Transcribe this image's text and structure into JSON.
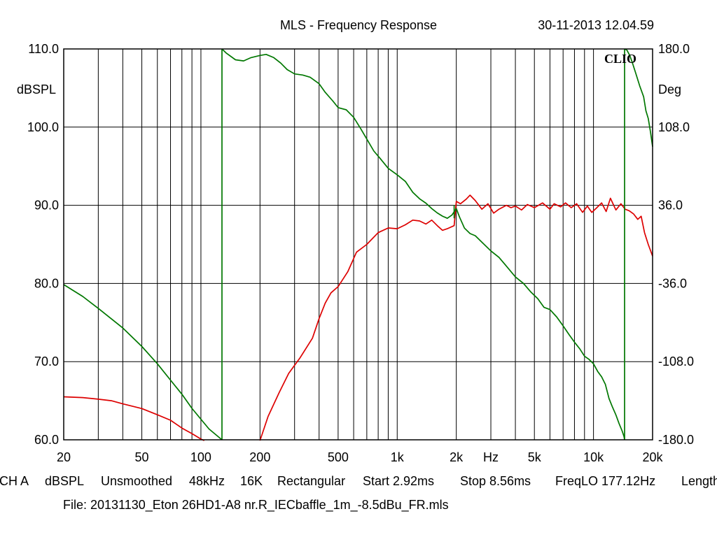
{
  "header": {
    "title": "MLS - Frequency Response",
    "timestamp": "30-11-2013 12.04.59",
    "brand": "CLIO"
  },
  "status_bar": [
    "CH A",
    "dBSPL",
    "Unsmoothed",
    "48kHz",
    "16K",
    "Rectangular",
    "Start 2.92ms",
    "Stop 8.56ms",
    "FreqLO 177.12Hz",
    "Length"
  ],
  "file_label": "File: 20131130_Eton 26HD1-A8 nr.R_IECbaffle_1m_-8.5dBu_FR.mls",
  "colors": {
    "magnitude": "#dd0000",
    "phase": "#007700",
    "grid": "#000000",
    "background": "#ffffff"
  },
  "chart_data": {
    "type": "line",
    "title": "MLS - Frequency Response",
    "x_scale": "log",
    "xlim": [
      20,
      20000
    ],
    "xlabel": "Hz",
    "x_ticks": [
      {
        "value": 20,
        "label": "20"
      },
      {
        "value": 50,
        "label": "50"
      },
      {
        "value": 100,
        "label": "100"
      },
      {
        "value": 200,
        "label": "200"
      },
      {
        "value": 500,
        "label": "500"
      },
      {
        "value": 1000,
        "label": "1k"
      },
      {
        "value": 2000,
        "label": "2k"
      },
      {
        "value": 5000,
        "label": "5k"
      },
      {
        "value": 10000,
        "label": "10k"
      },
      {
        "value": 20000,
        "label": "20k"
      }
    ],
    "x_unit_at": 3000,
    "y_left": {
      "label": "dBSPL",
      "lim": [
        60,
        110
      ],
      "ticks": [
        {
          "value": 110,
          "label": "110.0"
        },
        {
          "value": 100,
          "label": "100.0"
        },
        {
          "value": 90,
          "label": "90.0"
        },
        {
          "value": 80,
          "label": "80.0"
        },
        {
          "value": 70,
          "label": "70.0"
        },
        {
          "value": 60,
          "label": "60.0"
        }
      ]
    },
    "y_right": {
      "label": "Deg",
      "lim": [
        -180,
        180
      ],
      "ticks": [
        {
          "value": 180,
          "label": "180.0"
        },
        {
          "value": 108,
          "label": "108.0"
        },
        {
          "value": 36,
          "label": "36.0"
        },
        {
          "value": -36,
          "label": "-36.0"
        },
        {
          "value": -108,
          "label": "-108.0"
        },
        {
          "value": -180,
          "label": "-180.0"
        }
      ]
    },
    "grid": true,
    "series": [
      {
        "axis": "left",
        "color": "#dd0000",
        "segments": [
          [
            [
              20,
              65.5
            ],
            [
              25,
              65.4
            ],
            [
              30,
              65.2
            ],
            [
              35,
              65
            ],
            [
              40,
              64.6
            ],
            [
              50,
              64
            ],
            [
              60,
              63.2
            ],
            [
              70,
              62.5
            ],
            [
              80,
              61.5
            ],
            [
              90,
              60.8
            ],
            [
              100,
              60.1
            ],
            [
              104,
              59.9
            ]
          ],
          [
            [
              200,
              59.9
            ],
            [
              220,
              63
            ],
            [
              250,
              66
            ],
            [
              280,
              68.5
            ],
            [
              320,
              70.5
            ],
            [
              370,
              73
            ],
            [
              400,
              75.5
            ],
            [
              430,
              77.5
            ],
            [
              460,
              78.8
            ],
            [
              500,
              79.6
            ],
            [
              560,
              81.5
            ],
            [
              620,
              84
            ],
            [
              700,
              85
            ],
            [
              800,
              86.5
            ],
            [
              900,
              87.1
            ],
            [
              1000,
              87
            ],
            [
              1100,
              87.5
            ],
            [
              1200,
              88.1
            ],
            [
              1300,
              88
            ],
            [
              1400,
              87.6
            ],
            [
              1500,
              88.1
            ],
            [
              1600,
              87.4
            ],
            [
              1700,
              86.8
            ],
            [
              1800,
              87
            ],
            [
              1950,
              87.4
            ],
            [
              2000,
              90.5
            ],
            [
              2100,
              90.2
            ],
            [
              2250,
              90.8
            ],
            [
              2350,
              91.3
            ],
            [
              2500,
              90.6
            ],
            [
              2700,
              89.5
            ],
            [
              2900,
              90.2
            ],
            [
              3100,
              89
            ],
            [
              3300,
              89.5
            ],
            [
              3600,
              90
            ],
            [
              3800,
              89.7
            ],
            [
              4000,
              89.9
            ],
            [
              4300,
              89.4
            ],
            [
              4600,
              90.1
            ],
            [
              5000,
              89.7
            ],
            [
              5500,
              90.3
            ],
            [
              6000,
              89.5
            ],
            [
              6300,
              90.2
            ],
            [
              6800,
              89.8
            ],
            [
              7200,
              90.3
            ],
            [
              7700,
              89.7
            ],
            [
              8200,
              90.2
            ],
            [
              8800,
              89.1
            ],
            [
              9300,
              89.9
            ],
            [
              9800,
              89.1
            ],
            [
              10400,
              89.7
            ],
            [
              11000,
              90.3
            ],
            [
              11600,
              89.2
            ],
            [
              12200,
              90.9
            ],
            [
              13000,
              89.4
            ],
            [
              13800,
              90.2
            ],
            [
              14500,
              89.5
            ],
            [
              15200,
              89.3
            ],
            [
              16000,
              88.9
            ],
            [
              16800,
              88.2
            ],
            [
              17500,
              88.6
            ],
            [
              18200,
              86.5
            ],
            [
              19000,
              85
            ],
            [
              20000,
              83.5
            ]
          ]
        ]
      },
      {
        "axis": "right",
        "color": "#007700",
        "segments": [
          [
            [
              20,
              -37
            ],
            [
              25,
              -48
            ],
            [
              30,
              -59
            ],
            [
              40,
              -77
            ],
            [
              50,
              -94
            ],
            [
              60,
              -110
            ],
            [
              70,
              -125
            ],
            [
              80,
              -138
            ],
            [
              90,
              -151
            ],
            [
              100,
              -161
            ],
            [
              110,
              -170
            ],
            [
              128,
              -180
            ]
          ],
          [
            [
              128,
              180
            ],
            [
              135,
              176
            ],
            [
              150,
              170
            ],
            [
              165,
              169
            ],
            [
              180,
              172
            ],
            [
              200,
              174
            ],
            [
              215,
              175
            ],
            [
              235,
              172
            ],
            [
              255,
              167
            ],
            [
              275,
              161
            ],
            [
              300,
              157
            ],
            [
              330,
              156
            ],
            [
              360,
              154
            ],
            [
              400,
              148
            ],
            [
              430,
              140
            ],
            [
              470,
              132
            ],
            [
              500,
              126
            ],
            [
              550,
              124
            ],
            [
              600,
              117
            ],
            [
              650,
              107
            ],
            [
              700,
              97
            ],
            [
              760,
              86
            ],
            [
              820,
              79
            ],
            [
              900,
              70
            ],
            [
              1000,
              64
            ],
            [
              1100,
              58
            ],
            [
              1200,
              48
            ],
            [
              1300,
              42
            ],
            [
              1400,
              38
            ],
            [
              1500,
              33
            ],
            [
              1600,
              29
            ],
            [
              1700,
              26
            ],
            [
              1800,
              24
            ],
            [
              1900,
              27
            ],
            [
              2000,
              33
            ],
            [
              2080,
              25
            ],
            [
              2200,
              15
            ],
            [
              2350,
              10
            ],
            [
              2500,
              8
            ],
            [
              2700,
              2
            ],
            [
              3000,
              -6
            ],
            [
              3300,
              -12
            ],
            [
              3600,
              -20
            ],
            [
              4000,
              -30
            ],
            [
              4400,
              -36
            ],
            [
              4800,
              -44
            ],
            [
              5200,
              -50
            ],
            [
              5600,
              -58
            ],
            [
              6000,
              -60
            ],
            [
              6500,
              -67
            ],
            [
              7000,
              -75
            ],
            [
              7500,
              -83
            ],
            [
              8000,
              -90
            ],
            [
              8500,
              -96
            ],
            [
              9000,
              -103
            ],
            [
              9500,
              -106
            ],
            [
              10000,
              -110
            ],
            [
              10500,
              -117
            ],
            [
              11000,
              -122
            ],
            [
              11500,
              -129
            ],
            [
              12000,
              -142
            ],
            [
              12500,
              -150
            ],
            [
              13000,
              -157
            ],
            [
              13500,
              -165
            ],
            [
              14000,
              -172
            ],
            [
              14300,
              -177
            ],
            [
              14400,
              -180
            ]
          ],
          [
            [
              14400,
              180
            ],
            [
              14800,
              179
            ],
            [
              15300,
              174
            ],
            [
              15800,
              167
            ],
            [
              16400,
              158
            ],
            [
              17200,
              146
            ],
            [
              18000,
              136
            ],
            [
              18500,
              123
            ],
            [
              19000,
              116
            ],
            [
              19500,
              104
            ],
            [
              20000,
              90
            ]
          ]
        ]
      }
    ],
    "markers_right_axis": [
      {
        "x": 128,
        "from": -180,
        "to": 180
      },
      {
        "x": 1950,
        "from": 24,
        "to": 36
      },
      {
        "x": 14400,
        "from": -180,
        "to": 180
      }
    ]
  }
}
